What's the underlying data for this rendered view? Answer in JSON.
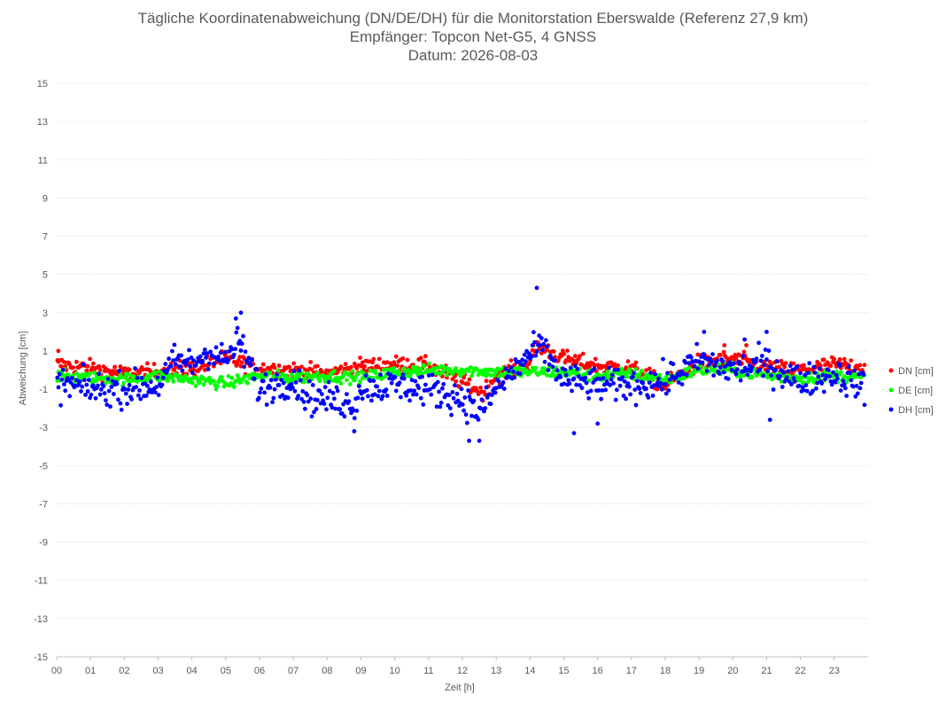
{
  "chart_data": {
    "type": "scatter",
    "title": "Tägliche Koordinatenabweichung (DN/DE/DH) für die Monitorstation Eberswalde (Referenz 27,9 km)",
    "subtitle_1": "Empfänger: Topcon Net-G5, 4 GNSS",
    "subtitle_2": "Datum: 2026-08-03",
    "xlabel": "Zeit [h]",
    "ylabel": "Abweichung [cm]",
    "xlim": [
      0,
      24
    ],
    "ylim": [
      -15,
      15
    ],
    "x_ticks": [
      "00",
      "01",
      "02",
      "03",
      "04",
      "05",
      "06",
      "07",
      "08",
      "09",
      "10",
      "11",
      "12",
      "13",
      "14",
      "15",
      "16",
      "17",
      "18",
      "19",
      "20",
      "21",
      "22",
      "23"
    ],
    "y_ticks": [
      "15",
      "13",
      "11",
      "9",
      "7",
      "5",
      "3",
      "1",
      "-1",
      "-3",
      "-5",
      "-7",
      "-9",
      "-11",
      "-13",
      "-15"
    ],
    "grid": "horizontal dotted",
    "legend_position": "right",
    "sample_interval_h": 0.0333,
    "series": [
      {
        "name": "DN [cm]",
        "color": "#ff0000",
        "profile": [
          [
            0,
            0.3
          ],
          [
            1,
            0.1
          ],
          [
            2,
            -0.2
          ],
          [
            3,
            -0.1
          ],
          [
            4,
            0.1
          ],
          [
            5,
            0.6
          ],
          [
            6,
            0.1
          ],
          [
            7,
            0.0
          ],
          [
            8,
            -0.2
          ],
          [
            9,
            0.2
          ],
          [
            10,
            0.3
          ],
          [
            11,
            0.2
          ],
          [
            12,
            -0.6
          ],
          [
            12.6,
            -1.2
          ],
          [
            13,
            -0.3
          ],
          [
            14,
            0.3
          ],
          [
            14.2,
            1.3
          ],
          [
            15,
            0.6
          ],
          [
            16,
            0.2
          ],
          [
            17,
            0.1
          ],
          [
            18,
            -0.8
          ],
          [
            19,
            0.4
          ],
          [
            20,
            0.6
          ],
          [
            21,
            0.1
          ],
          [
            22,
            0.0
          ],
          [
            23,
            0.3
          ],
          [
            24,
            0.1
          ]
        ],
        "spread": 0.35,
        "outliers": [
          {
            "x": 5.45,
            "y": 1.4
          },
          {
            "x": 0.05,
            "y": 1.0
          },
          {
            "x": 14.1,
            "y": 1.3
          },
          {
            "x": 20.4,
            "y": 1.3
          },
          {
            "x": 19.75,
            "y": 1.3
          }
        ]
      },
      {
        "name": "DE [cm]",
        "color": "#00ff00",
        "profile": [
          [
            0,
            -0.3
          ],
          [
            1,
            -0.4
          ],
          [
            2,
            -0.5
          ],
          [
            3,
            -0.3
          ],
          [
            4,
            -0.5
          ],
          [
            5,
            -0.7
          ],
          [
            6,
            -0.3
          ],
          [
            7,
            -0.4
          ],
          [
            8,
            -0.3
          ],
          [
            9,
            -0.4
          ],
          [
            10,
            -0.1
          ],
          [
            11,
            0.0
          ],
          [
            12,
            0.0
          ],
          [
            13,
            -0.1
          ],
          [
            14,
            -0.1
          ],
          [
            15,
            -0.1
          ],
          [
            16,
            -0.3
          ],
          [
            17,
            -0.2
          ],
          [
            18,
            -0.5
          ],
          [
            19,
            0.0
          ],
          [
            20,
            0.0
          ],
          [
            21,
            -0.3
          ],
          [
            22,
            -0.4
          ],
          [
            23,
            -0.3
          ],
          [
            24,
            -0.4
          ]
        ],
        "spread": 0.25,
        "outliers": []
      },
      {
        "name": "DH [cm]",
        "color": "#0000ff",
        "profile": [
          [
            0,
            -0.7
          ],
          [
            1,
            -1.0
          ],
          [
            2,
            -1.0
          ],
          [
            3,
            -0.8
          ],
          [
            3.5,
            0.5
          ],
          [
            4,
            0.3
          ],
          [
            4.5,
            1.0
          ],
          [
            5,
            0.5
          ],
          [
            5.4,
            1.5
          ],
          [
            6,
            -1.0
          ],
          [
            7,
            -0.5
          ],
          [
            7.5,
            -1.5
          ],
          [
            8,
            -1.5
          ],
          [
            8.8,
            -1.8
          ],
          [
            9,
            -0.9
          ],
          [
            10,
            -0.8
          ],
          [
            11,
            -1.0
          ],
          [
            12,
            -1.5
          ],
          [
            12.5,
            -2.3
          ],
          [
            13,
            -1.0
          ],
          [
            14,
            0.8
          ],
          [
            14.3,
            1.2
          ],
          [
            15,
            -0.5
          ],
          [
            16,
            -0.8
          ],
          [
            17,
            -0.8
          ],
          [
            18,
            -0.6
          ],
          [
            19,
            0.5
          ],
          [
            20,
            0.0
          ],
          [
            21,
            0.3
          ],
          [
            22,
            -0.6
          ],
          [
            23,
            -0.2
          ],
          [
            24,
            -1.0
          ]
        ],
        "spread": 0.7,
        "outliers": [
          {
            "x": 14.2,
            "y": 4.3
          },
          {
            "x": 5.45,
            "y": 3.0
          },
          {
            "x": 5.3,
            "y": 2.7
          },
          {
            "x": 19.15,
            "y": 2.0
          },
          {
            "x": 20.35,
            "y": 1.6
          },
          {
            "x": 21.0,
            "y": 2.0
          },
          {
            "x": 15.3,
            "y": -3.3
          },
          {
            "x": 12.2,
            "y": -3.7
          },
          {
            "x": 12.5,
            "y": -3.7
          },
          {
            "x": 8.8,
            "y": -3.2
          },
          {
            "x": 21.1,
            "y": -2.6
          },
          {
            "x": 16.0,
            "y": -2.8
          }
        ]
      }
    ]
  }
}
